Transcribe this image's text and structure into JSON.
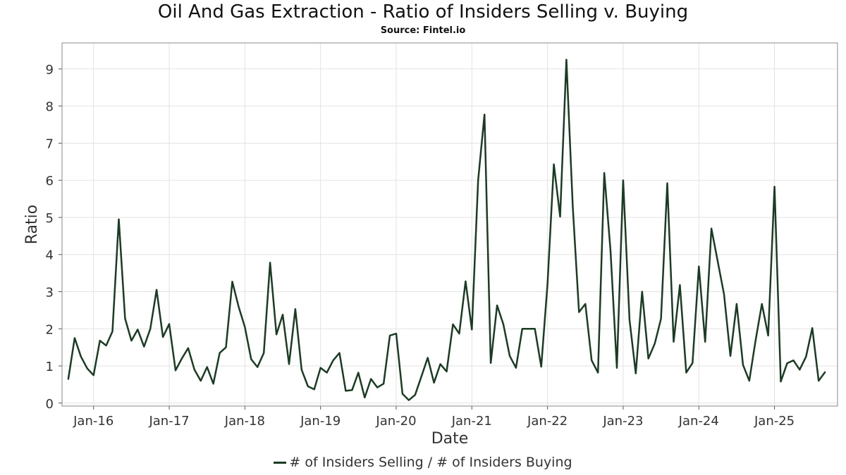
{
  "chart_data": {
    "type": "line",
    "title": "Oil And Gas Extraction - Ratio of Insiders Selling v. Buying",
    "subtitle": "Source: Fintel.io",
    "xlabel": "Date",
    "ylabel": "Ratio",
    "x_tick_labels": [
      "Jan-16",
      "Jan-17",
      "Jan-18",
      "Jan-19",
      "Jan-20",
      "Jan-21",
      "Jan-22",
      "Jan-23",
      "Jan-24",
      "Jan-25"
    ],
    "x_ticks": [
      "2016-01",
      "2017-01",
      "2018-01",
      "2019-01",
      "2020-01",
      "2021-01",
      "2022-01",
      "2023-01",
      "2024-01",
      "2025-01"
    ],
    "xlim": [
      "2015-08",
      "2025-11"
    ],
    "y_ticks": [
      0,
      1,
      2,
      3,
      4,
      5,
      6,
      7,
      8,
      9
    ],
    "ylim": [
      -0.08,
      9.7
    ],
    "grid": true,
    "legend_position": "bottom-center",
    "series": [
      {
        "name": "# of Insiders Selling / # of Insiders Buying",
        "color": "#1a3c22",
        "x": [
          "2015-09",
          "2015-10",
          "2015-11",
          "2015-12",
          "2016-01",
          "2016-02",
          "2016-03",
          "2016-04",
          "2016-05",
          "2016-06",
          "2016-07",
          "2016-08",
          "2016-09",
          "2016-10",
          "2016-11",
          "2016-12",
          "2017-01",
          "2017-02",
          "2017-03",
          "2017-04",
          "2017-05",
          "2017-06",
          "2017-07",
          "2017-08",
          "2017-09",
          "2017-10",
          "2017-11",
          "2017-12",
          "2018-01",
          "2018-02",
          "2018-03",
          "2018-04",
          "2018-05",
          "2018-06",
          "2018-07",
          "2018-08",
          "2018-09",
          "2018-10",
          "2018-11",
          "2018-12",
          "2019-01",
          "2019-02",
          "2019-03",
          "2019-04",
          "2019-05",
          "2019-06",
          "2019-07",
          "2019-08",
          "2019-09",
          "2019-10",
          "2019-11",
          "2019-12",
          "2020-01",
          "2020-02",
          "2020-03",
          "2020-04",
          "2020-05",
          "2020-06",
          "2020-07",
          "2020-08",
          "2020-09",
          "2020-10",
          "2020-11",
          "2020-12",
          "2021-01",
          "2021-02",
          "2021-03",
          "2021-04",
          "2021-05",
          "2021-06",
          "2021-07",
          "2021-08",
          "2021-09",
          "2021-10",
          "2021-11",
          "2021-12",
          "2022-01",
          "2022-02",
          "2022-03",
          "2022-04",
          "2022-05",
          "2022-06",
          "2022-07",
          "2022-08",
          "2022-09",
          "2022-10",
          "2022-11",
          "2022-12",
          "2023-01",
          "2023-02",
          "2023-03",
          "2023-04",
          "2023-05",
          "2023-06",
          "2023-07",
          "2023-08",
          "2023-09",
          "2023-10",
          "2023-11",
          "2023-12",
          "2024-01",
          "2024-02",
          "2024-03",
          "2024-05",
          "2024-06",
          "2024-07",
          "2024-08",
          "2024-09",
          "2024-10",
          "2024-11",
          "2024-12",
          "2025-01",
          "2025-02",
          "2025-03",
          "2025-04",
          "2025-05",
          "2025-06",
          "2025-07",
          "2025-08",
          "2025-09"
        ],
        "values": [
          0.65,
          1.75,
          1.25,
          0.93,
          0.75,
          1.68,
          1.55,
          1.93,
          4.95,
          2.28,
          1.68,
          1.98,
          1.52,
          2.0,
          3.05,
          1.78,
          2.13,
          0.88,
          1.2,
          1.48,
          0.9,
          0.6,
          0.97,
          0.52,
          1.35,
          1.5,
          3.27,
          2.6,
          2.05,
          1.18,
          0.97,
          1.35,
          3.78,
          1.85,
          2.38,
          1.05,
          2.53,
          0.9,
          0.45,
          0.37,
          0.95,
          0.82,
          1.15,
          1.35,
          0.33,
          0.35,
          0.82,
          0.15,
          0.65,
          0.42,
          0.52,
          1.82,
          1.87,
          0.25,
          0.08,
          0.22,
          0.72,
          1.22,
          0.55,
          1.05,
          0.85,
          2.12,
          1.87,
          3.28,
          1.98,
          6.0,
          7.77,
          1.08,
          2.63,
          2.12,
          1.27,
          0.95,
          2.0,
          2.0,
          2.0,
          0.98,
          3.2,
          6.43,
          5.02,
          9.25,
          5.3,
          2.45,
          2.67,
          1.15,
          0.82,
          6.2,
          4.1,
          0.95,
          6.0,
          2.25,
          0.8,
          3.0,
          1.2,
          1.6,
          2.27,
          5.92,
          1.65,
          3.18,
          0.82,
          1.08,
          3.68,
          1.65,
          4.7,
          2.93,
          1.27,
          2.67,
          1.03,
          0.6,
          1.68,
          2.67,
          1.82,
          5.83,
          0.58,
          1.07,
          1.15,
          0.9,
          1.25,
          2.02,
          0.6,
          0.83
        ]
      }
    ]
  }
}
